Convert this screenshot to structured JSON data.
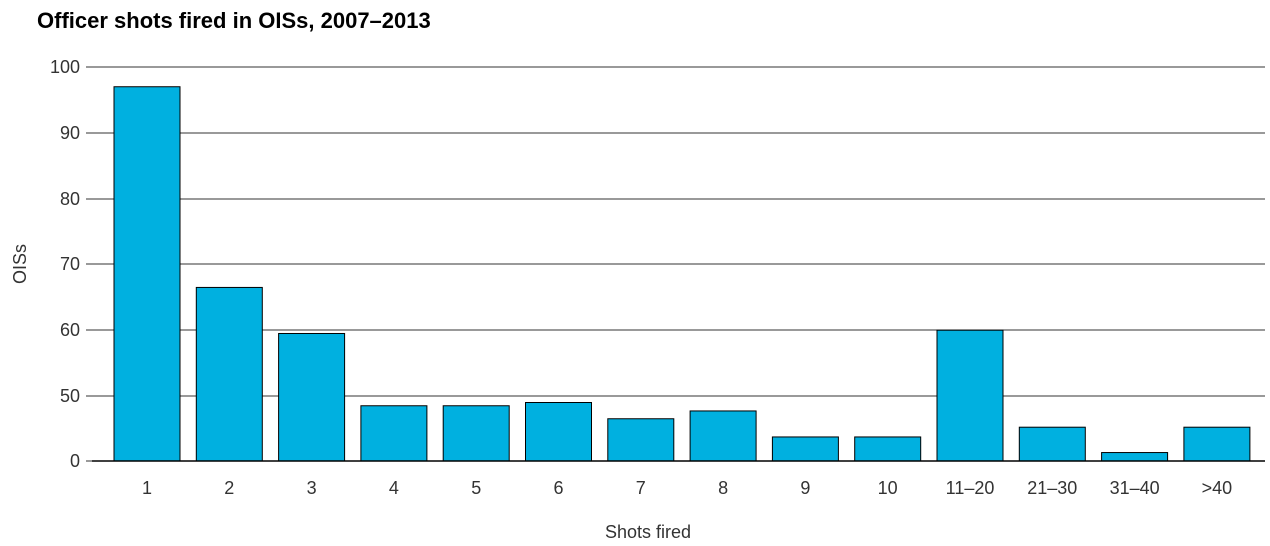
{
  "chart_data": {
    "type": "bar",
    "title": "Officer shots fired in OISs, 2007–2013",
    "xlabel": "Shots fired",
    "ylabel": "OISs",
    "categories": [
      "1",
      "2",
      "3",
      "4",
      "5",
      "6",
      "7",
      "8",
      "9",
      "10",
      "11–20",
      "21–30",
      "31–40",
      ">40"
    ],
    "values": [
      97,
      66.5,
      59.5,
      48.5,
      48.5,
      49,
      46.5,
      47.7,
      43.7,
      43.7,
      60,
      45.2,
      41.3,
      45.2
    ],
    "y_ticks": [
      "100",
      "90",
      "80",
      "70",
      "60",
      "50",
      "0"
    ],
    "grid": true,
    "bar_color": "#00b0e0",
    "bar_stroke": "#000000"
  }
}
